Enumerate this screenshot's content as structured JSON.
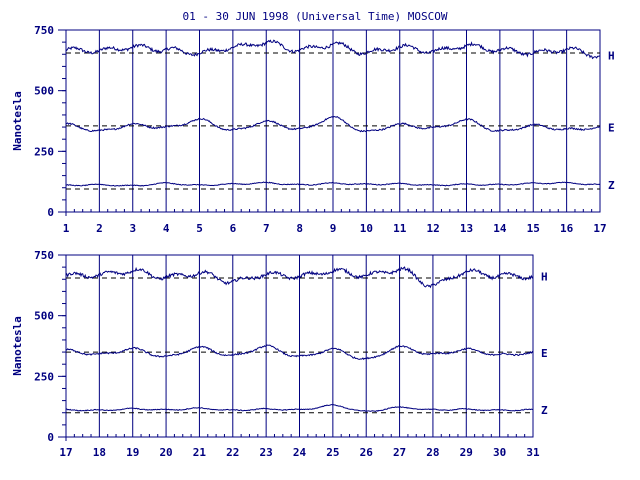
{
  "title": "01 - 30 JUN 1998 (Universal Time) MOSCOW",
  "colors": {
    "ink": "#000080",
    "background": "#ffffff",
    "baseline": "#000000"
  },
  "chart_data": [
    {
      "type": "line",
      "ylabel": "Nanotesla",
      "ylim": [
        0,
        750
      ],
      "yticks": [
        "0",
        "250",
        "500",
        "750"
      ],
      "xlim": [
        1,
        17
      ],
      "xticks": [
        "1",
        "2",
        "3",
        "4",
        "5",
        "6",
        "7",
        "8",
        "9",
        "10",
        "11",
        "12",
        "13",
        "14",
        "15",
        "16",
        "17"
      ],
      "grid": "vertical lines at each day",
      "series": [
        {
          "name": "H",
          "baseline": 655,
          "values": [
            667,
            665,
            680,
            669,
            655,
            678,
            697,
            668,
            690,
            657,
            680,
            662,
            685,
            668,
            656,
            669,
            645
          ]
        },
        {
          "name": "E",
          "baseline": 355,
          "values": [
            360,
            333,
            360,
            348,
            380,
            336,
            372,
            340,
            388,
            330,
            360,
            345,
            378,
            332,
            356,
            340,
            348
          ]
        },
        {
          "name": "Z",
          "baseline": 95,
          "values": [
            110,
            112,
            108,
            118,
            110,
            115,
            120,
            112,
            118,
            114,
            116,
            110,
            114,
            112,
            118,
            120,
            112
          ]
        }
      ]
    },
    {
      "type": "line",
      "ylabel": "Nanotesla",
      "ylim": [
        0,
        750
      ],
      "yticks": [
        "0",
        "250",
        "500",
        "750"
      ],
      "xlim": [
        17,
        31
      ],
      "xticks": [
        "17",
        "18",
        "19",
        "20",
        "21",
        "22",
        "23",
        "24",
        "25",
        "26",
        "27",
        "28",
        "29",
        "30",
        "31"
      ],
      "grid": "vertical lines at each day",
      "series": [
        {
          "name": "H",
          "baseline": 655,
          "values": [
            665,
            668,
            685,
            658,
            675,
            640,
            670,
            662,
            684,
            666,
            690,
            625,
            680,
            664,
            662
          ]
        },
        {
          "name": "E",
          "baseline": 350,
          "values": [
            356,
            340,
            362,
            330,
            368,
            335,
            372,
            330,
            360,
            320,
            370,
            340,
            360,
            338,
            346
          ]
        },
        {
          "name": "Z",
          "baseline": 100,
          "values": [
            112,
            110,
            116,
            112,
            118,
            110,
            115,
            112,
            130,
            105,
            122,
            112,
            114,
            110,
            112
          ]
        }
      ]
    }
  ]
}
